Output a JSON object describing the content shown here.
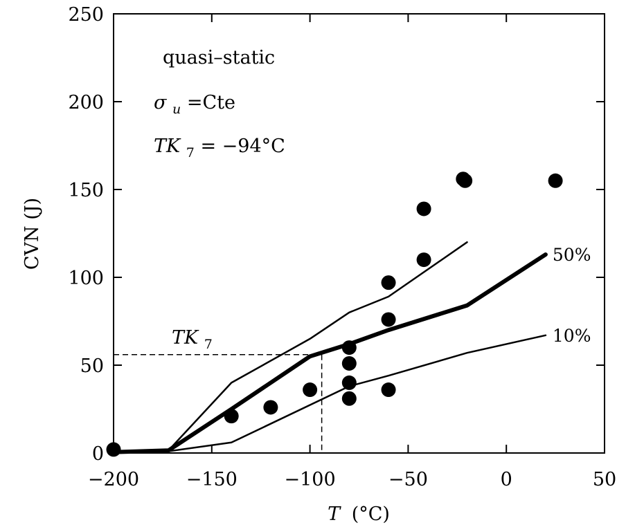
{
  "chart_data": {
    "type": "line",
    "xlabel": {
      "symbol": "T",
      "unit": "(°C)"
    },
    "ylabel": "CVN (J)",
    "xlim": [
      -200,
      50
    ],
    "ylim": [
      0,
      250
    ],
    "x_ticks": [
      -200,
      -150,
      -100,
      -50,
      0,
      50
    ],
    "y_ticks": [
      0,
      50,
      100,
      150,
      200,
      250
    ],
    "x_tick_labels": [
      "−200",
      "−150",
      "−100",
      "−50",
      "0",
      "50"
    ],
    "y_tick_labels": [
      "0",
      "50",
      "100",
      "150",
      "200",
      "250"
    ],
    "grid": false,
    "annotations": {
      "line1": "quasi–static",
      "line2_symbol": "σ",
      "line2_sub": "u",
      "line2_rest": " =Cte",
      "line3_symbol": "TK",
      "line3_sub": "7",
      "line3_rest": " = −94°C",
      "tk7_symbol": "TK",
      "tk7_sub": "7"
    },
    "series": [
      {
        "name": "50%",
        "style": "thick",
        "points": [
          [
            -200,
            0.5
          ],
          [
            -172,
            1.5
          ],
          [
            -140,
            25
          ],
          [
            -100,
            55
          ],
          [
            -80,
            62
          ],
          [
            -60,
            70
          ],
          [
            -20,
            84
          ],
          [
            20,
            113
          ]
        ]
      },
      {
        "name": "10%",
        "style": "thin",
        "points": [
          [
            -200,
            0.5
          ],
          [
            -172,
            1
          ],
          [
            -140,
            6
          ],
          [
            -80,
            38
          ],
          [
            -60,
            44
          ],
          [
            -20,
            57
          ],
          [
            20,
            67
          ]
        ]
      },
      {
        "name": "",
        "style": "thin",
        "points": [
          [
            -200,
            0.5
          ],
          [
            -172,
            1.5
          ],
          [
            -140,
            40
          ],
          [
            -100,
            65
          ],
          [
            -80,
            80
          ],
          [
            -60,
            89
          ],
          [
            -20,
            120
          ]
        ]
      }
    ],
    "scatter": [
      [
        -200,
        2
      ],
      [
        -140,
        21
      ],
      [
        -120,
        26
      ],
      [
        -100,
        36
      ],
      [
        -80,
        60
      ],
      [
        -80,
        51
      ],
      [
        -80,
        40
      ],
      [
        -80,
        31
      ],
      [
        -60,
        97
      ],
      [
        -60,
        76
      ],
      [
        -60,
        36
      ],
      [
        -42,
        110
      ],
      [
        -42,
        139
      ],
      [
        -22,
        156
      ],
      [
        -21,
        155
      ],
      [
        25,
        155
      ]
    ],
    "reference_lines": {
      "x": -94,
      "y": 56
    }
  }
}
